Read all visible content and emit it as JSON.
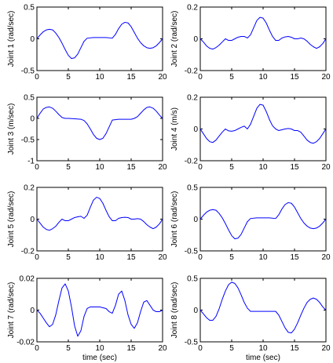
{
  "figure": {
    "background": "#ffffff",
    "line_color": "#0000ff",
    "axis_color": "#000000"
  },
  "chart_data": [
    {
      "type": "line",
      "ylabel": "Joint 1 (rad/sec)",
      "xlabel": "",
      "xlim": [
        0,
        20
      ],
      "ylim": [
        -0.5,
        0.5
      ],
      "xticks": [
        0,
        5,
        10,
        15,
        20
      ],
      "xtick_labels": [
        "0",
        "5",
        "10",
        "15",
        "20"
      ],
      "yticks": [
        0.5,
        0,
        -0.5
      ],
      "ytick_labels": [
        "0.5",
        "0",
        "-0.5"
      ],
      "series": [
        {
          "x": [
            0,
            0.5,
            1,
            1.5,
            2,
            2.5,
            3,
            3.5,
            4,
            4.5,
            5,
            5.5,
            6,
            6.5,
            7,
            7.5,
            8,
            9,
            10,
            11,
            12,
            12.5,
            13,
            13.5,
            14,
            14.5,
            15,
            15.5,
            16,
            16.5,
            17,
            17.5,
            18,
            18.5,
            19,
            19.5,
            20
          ],
          "y": [
            0,
            0.06,
            0.11,
            0.14,
            0.15,
            0.14,
            0.09,
            0.02,
            -0.07,
            -0.17,
            -0.26,
            -0.31,
            -0.3,
            -0.24,
            -0.14,
            -0.04,
            0.01,
            0.02,
            0.02,
            0.02,
            0.01,
            0.07,
            0.16,
            0.23,
            0.26,
            0.25,
            0.19,
            0.1,
            0.01,
            -0.06,
            -0.11,
            -0.14,
            -0.15,
            -0.14,
            -0.11,
            -0.06,
            0
          ]
        }
      ]
    },
    {
      "type": "line",
      "ylabel": "Joint 2 (rad/sec)",
      "xlabel": "",
      "xlim": [
        0,
        20
      ],
      "ylim": [
        -0.2,
        0.2
      ],
      "xticks": [
        0,
        5,
        10,
        15,
        20
      ],
      "xtick_labels": [
        "0",
        "5",
        "10",
        "15",
        "20"
      ],
      "yticks": [
        0.2,
        0,
        -0.2
      ],
      "ytick_labels": [
        "0.2",
        "0",
        "-0.2"
      ],
      "series": [
        {
          "x": [
            0,
            0.5,
            1,
            1.5,
            2,
            2.5,
            3,
            3.5,
            4,
            4.5,
            5,
            5.5,
            6,
            6.5,
            7,
            7.5,
            8,
            8.5,
            9,
            9.5,
            10,
            10.5,
            11,
            11.5,
            12,
            12.5,
            13,
            13.5,
            14,
            14.5,
            15,
            15.5,
            16,
            16.5,
            17,
            17.5,
            18,
            18.5,
            19,
            19.5,
            20
          ],
          "y": [
            0,
            -0.02,
            -0.045,
            -0.06,
            -0.065,
            -0.055,
            -0.04,
            -0.02,
            0,
            -0.01,
            -0.01,
            0,
            0.01,
            0.015,
            0.015,
            0.005,
            0.025,
            0.07,
            0.115,
            0.135,
            0.13,
            0.1,
            0.055,
            0.015,
            -0.01,
            -0.01,
            0.005,
            0.012,
            0.015,
            0.01,
            0,
            0,
            0.005,
            0,
            -0.015,
            -0.035,
            -0.05,
            -0.06,
            -0.05,
            -0.03,
            0
          ]
        }
      ]
    },
    {
      "type": "line",
      "ylabel": "Joint 3 (m/sec)",
      "xlabel": "",
      "xlim": [
        0,
        20
      ],
      "ylim": [
        -1,
        0.5
      ],
      "xticks": [
        0,
        5,
        10,
        15,
        20
      ],
      "xtick_labels": [
        "0",
        "5",
        "10",
        "15",
        "20"
      ],
      "yticks": [
        0.5,
        0,
        -0.5,
        -1
      ],
      "ytick_labels": [
        "0.5",
        "0",
        "-0.5",
        "-1"
      ],
      "series": [
        {
          "x": [
            0,
            0.5,
            1,
            1.5,
            2,
            2.5,
            3,
            3.5,
            4,
            4.5,
            5,
            6,
            7,
            7.5,
            8,
            8.5,
            9,
            9.5,
            10,
            10.5,
            11,
            11.5,
            12,
            13,
            14,
            15,
            15.5,
            16,
            16.5,
            17,
            17.5,
            18,
            18.5,
            19,
            19.5,
            20
          ],
          "y": [
            0,
            0.12,
            0.22,
            0.26,
            0.27,
            0.24,
            0.17,
            0.09,
            0.02,
            0,
            0,
            -0.01,
            -0.02,
            -0.05,
            -0.13,
            -0.25,
            -0.38,
            -0.47,
            -0.5,
            -0.47,
            -0.36,
            -0.2,
            -0.04,
            -0.02,
            -0.02,
            -0.02,
            0,
            0.04,
            0.12,
            0.2,
            0.26,
            0.27,
            0.24,
            0.17,
            0.08,
            0
          ]
        }
      ]
    },
    {
      "type": "line",
      "ylabel": "Joint 4 (m/s)",
      "xlabel": "",
      "xlim": [
        0,
        20
      ],
      "ylim": [
        -0.2,
        0.2
      ],
      "xticks": [
        0,
        5,
        10,
        15,
        20
      ],
      "xtick_labels": [
        "0",
        "5",
        "10",
        "15",
        "20"
      ],
      "yticks": [
        0.2,
        0,
        -0.2
      ],
      "ytick_labels": [
        "0.2",
        "0",
        "-0.2"
      ],
      "series": [
        {
          "x": [
            0,
            0.5,
            1,
            1.5,
            2,
            2.5,
            3,
            3.5,
            4,
            4.5,
            5,
            5.5,
            6,
            6.5,
            7,
            7.5,
            8,
            8.5,
            9,
            9.5,
            10,
            10.5,
            11,
            11.5,
            12,
            12.5,
            13,
            13.5,
            14,
            14.5,
            15,
            15.5,
            16,
            16.5,
            17,
            17.5,
            18,
            18.5,
            19,
            19.5,
            20
          ],
          "y": [
            0,
            -0.03,
            -0.06,
            -0.08,
            -0.085,
            -0.07,
            -0.045,
            -0.02,
            0,
            -0.012,
            -0.014,
            -0.01,
            0,
            0.01,
            0.018,
            0,
            0.03,
            0.08,
            0.13,
            0.155,
            0.15,
            0.11,
            0.06,
            0.02,
            0,
            -0.01,
            -0.005,
            0,
            0.003,
            0,
            -0.01,
            -0.01,
            -0.02,
            -0.045,
            -0.07,
            -0.085,
            -0.09,
            -0.08,
            -0.06,
            -0.03,
            0
          ]
        }
      ]
    },
    {
      "type": "line",
      "ylabel": "Joint 5 (rad/sec)",
      "xlabel": "",
      "xlim": [
        0,
        20
      ],
      "ylim": [
        -0.2,
        0.2
      ],
      "xticks": [
        0,
        5,
        10,
        15,
        20
      ],
      "xtick_labels": [
        "0",
        "5",
        "10",
        "15",
        "20"
      ],
      "yticks": [
        0.2,
        0,
        -0.2
      ],
      "ytick_labels": [
        "0.2",
        "0",
        "-0.2"
      ],
      "series": [
        {
          "x": [
            0,
            0.5,
            1,
            1.5,
            2,
            2.5,
            3,
            3.5,
            4,
            4.5,
            5,
            5.5,
            6,
            6.5,
            7,
            7.5,
            8,
            8.5,
            9,
            9.5,
            10,
            10.5,
            11,
            11.5,
            12,
            12.5,
            13,
            13.5,
            14,
            14.5,
            15,
            15.5,
            16,
            16.5,
            17,
            17.5,
            18,
            18.5,
            19,
            19.5,
            20
          ],
          "y": [
            0,
            -0.025,
            -0.05,
            -0.065,
            -0.07,
            -0.06,
            -0.045,
            -0.02,
            0,
            -0.01,
            -0.01,
            0,
            0.01,
            0.015,
            0.018,
            0.005,
            0.025,
            0.075,
            0.12,
            0.138,
            0.13,
            0.1,
            0.055,
            0.015,
            -0.01,
            -0.01,
            0.005,
            0.01,
            0.012,
            0.01,
            0,
            0,
            0.003,
            0,
            -0.015,
            -0.035,
            -0.05,
            -0.06,
            -0.05,
            -0.03,
            0
          ]
        }
      ]
    },
    {
      "type": "line",
      "ylabel": "Joint 6 (rad/sec)",
      "xlabel": "",
      "xlim": [
        0,
        20
      ],
      "ylim": [
        -0.5,
        0.5
      ],
      "xticks": [
        0,
        5,
        10,
        15,
        20
      ],
      "xtick_labels": [
        "0",
        "5",
        "10",
        "15",
        "20"
      ],
      "yticks": [
        0.5,
        0,
        -0.5
      ],
      "ytick_labels": [
        "0.5",
        "0",
        "-0.5"
      ],
      "series": [
        {
          "x": [
            0,
            0.5,
            1,
            1.5,
            2,
            2.5,
            3,
            3.5,
            4,
            4.5,
            5,
            5.5,
            6,
            6.5,
            7,
            7.5,
            8,
            9,
            10,
            11,
            12,
            12.5,
            13,
            13.5,
            14,
            14.5,
            15,
            15.5,
            16,
            16.5,
            17,
            17.5,
            18,
            18.5,
            19,
            19.5,
            20
          ],
          "y": [
            0,
            0.06,
            0.11,
            0.14,
            0.15,
            0.14,
            0.09,
            0.02,
            -0.07,
            -0.17,
            -0.26,
            -0.31,
            -0.3,
            -0.24,
            -0.14,
            -0.04,
            0.01,
            0.02,
            0.02,
            0.02,
            0.01,
            0.07,
            0.16,
            0.23,
            0.26,
            0.25,
            0.19,
            0.1,
            0.01,
            -0.06,
            -0.11,
            -0.14,
            -0.15,
            -0.14,
            -0.11,
            -0.06,
            0
          ]
        }
      ]
    },
    {
      "type": "line",
      "ylabel": "Joint 7 (rad/sec)",
      "xlabel": "time (sec)",
      "xlim": [
        0,
        20
      ],
      "ylim": [
        -0.02,
        0.02
      ],
      "xticks": [
        0,
        5,
        10,
        15,
        20
      ],
      "xtick_labels": [
        "0",
        "5",
        "10",
        "15",
        "20"
      ],
      "yticks": [
        0.02,
        0,
        -0.02
      ],
      "ytick_labels": [
        "0.02",
        "0",
        "-0.02"
      ],
      "series": [
        {
          "x": [
            0,
            0.5,
            1,
            1.5,
            2,
            2.5,
            3,
            3.5,
            4,
            4.5,
            5,
            5.5,
            6,
            6.5,
            7,
            7.5,
            8,
            8.5,
            9,
            9.5,
            10,
            10.5,
            11,
            11.5,
            12,
            12.5,
            13,
            13.5,
            14,
            14.5,
            15,
            15.5,
            16,
            16.5,
            17,
            17.5,
            18,
            18.5,
            19,
            19.5,
            20
          ],
          "y": [
            0,
            -0.002,
            -0.005,
            -0.008,
            -0.0105,
            -0.009,
            -0.003,
            0.006,
            0.014,
            0.0165,
            0.012,
            0.002,
            -0.01,
            -0.0165,
            -0.013,
            -0.004,
            0.001,
            0.002,
            0.002,
            0.002,
            0.002,
            0.0015,
            0.001,
            -0.001,
            -0.002,
            0.003,
            0.01,
            0.012,
            0.006,
            -0.003,
            -0.009,
            -0.0115,
            -0.008,
            -0.001,
            0.005,
            0.006,
            0.003,
            0,
            -0.001,
            -0.001,
            0
          ]
        }
      ]
    },
    {
      "type": "line",
      "ylabel": "Joint 8 (rad/sec)",
      "xlabel": "time (sec)",
      "xlim": [
        0,
        20
      ],
      "ylim": [
        -0.5,
        0.5
      ],
      "xticks": [
        0,
        5,
        10,
        15,
        20
      ],
      "xtick_labels": [
        "0",
        "5",
        "10",
        "15",
        "20"
      ],
      "yticks": [
        0.5,
        0,
        -0.5
      ],
      "ytick_labels": [
        "0.5",
        "0",
        "-0.5"
      ],
      "series": [
        {
          "x": [
            0,
            0.5,
            1,
            1.5,
            2,
            2.5,
            3,
            3.5,
            4,
            4.5,
            5,
            5.5,
            6,
            6.5,
            7,
            7.5,
            8,
            9,
            10,
            11,
            12,
            12.5,
            13,
            13.5,
            14,
            14.5,
            15,
            15.5,
            16,
            16.5,
            17,
            17.5,
            18,
            18.5,
            19,
            19.5,
            20
          ],
          "y": [
            0,
            -0.06,
            -0.12,
            -0.16,
            -0.16,
            -0.1,
            0.02,
            0.17,
            0.3,
            0.4,
            0.44,
            0.42,
            0.35,
            0.24,
            0.12,
            0.03,
            -0.02,
            -0.02,
            -0.02,
            -0.02,
            -0.02,
            -0.08,
            -0.18,
            -0.28,
            -0.35,
            -0.36,
            -0.3,
            -0.2,
            -0.08,
            0.03,
            0.12,
            0.17,
            0.19,
            0.17,
            0.12,
            0.05,
            0
          ]
        }
      ]
    }
  ]
}
